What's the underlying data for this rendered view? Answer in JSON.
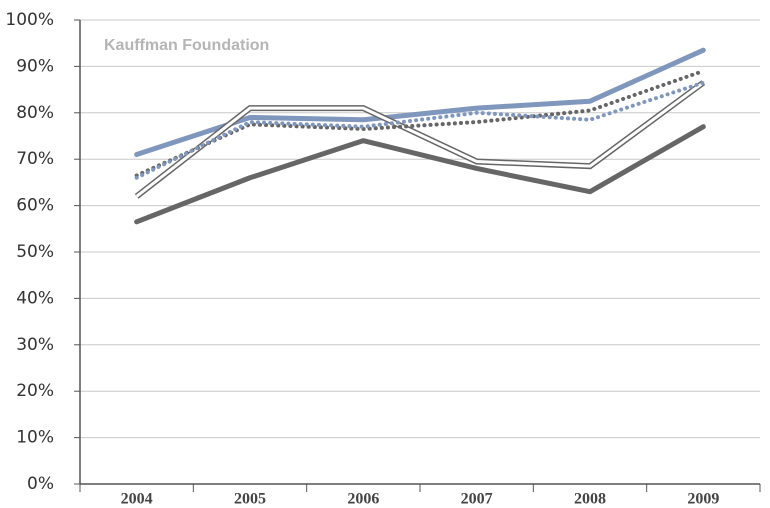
{
  "chart_data": {
    "type": "line",
    "annotation": "Kauffman Foundation",
    "categories": [
      "2004",
      "2005",
      "2006",
      "2007",
      "2008",
      "2009"
    ],
    "series": [
      {
        "color": "#8097bd",
        "linestyle": "thick",
        "values": [
          71,
          79,
          78.5,
          81,
          82.5,
          93.5
        ]
      },
      {
        "color": "#666666",
        "linestyle": "thick",
        "values": [
          56.5,
          66,
          74,
          68,
          63,
          77
        ]
      },
      {
        "color": "#666666",
        "linestyle": "double",
        "values": [
          62,
          81,
          81,
          69.5,
          68.5,
          86.5
        ]
      },
      {
        "color": "#666666",
        "linestyle": "dotted",
        "values": [
          66.5,
          77.5,
          76.5,
          78,
          80.5,
          89
        ]
      },
      {
        "color": "#8097bd",
        "linestyle": "dotted",
        "values": [
          66,
          78,
          77,
          80,
          78.5,
          86.5
        ]
      }
    ],
    "ylim": [
      0,
      100
    ],
    "yticks": [
      {
        "value": 0,
        "label": "0%"
      },
      {
        "value": 10,
        "label": "10%"
      },
      {
        "value": 20,
        "label": "20%"
      },
      {
        "value": 30,
        "label": "30%"
      },
      {
        "value": 40,
        "label": "40%"
      },
      {
        "value": 50,
        "label": "50%"
      },
      {
        "value": 60,
        "label": "60%"
      },
      {
        "value": 70,
        "label": "70%"
      },
      {
        "value": 80,
        "label": "80%"
      },
      {
        "value": 90,
        "label": "90%"
      },
      {
        "value": 100,
        "label": "100%"
      }
    ],
    "grid": true
  }
}
